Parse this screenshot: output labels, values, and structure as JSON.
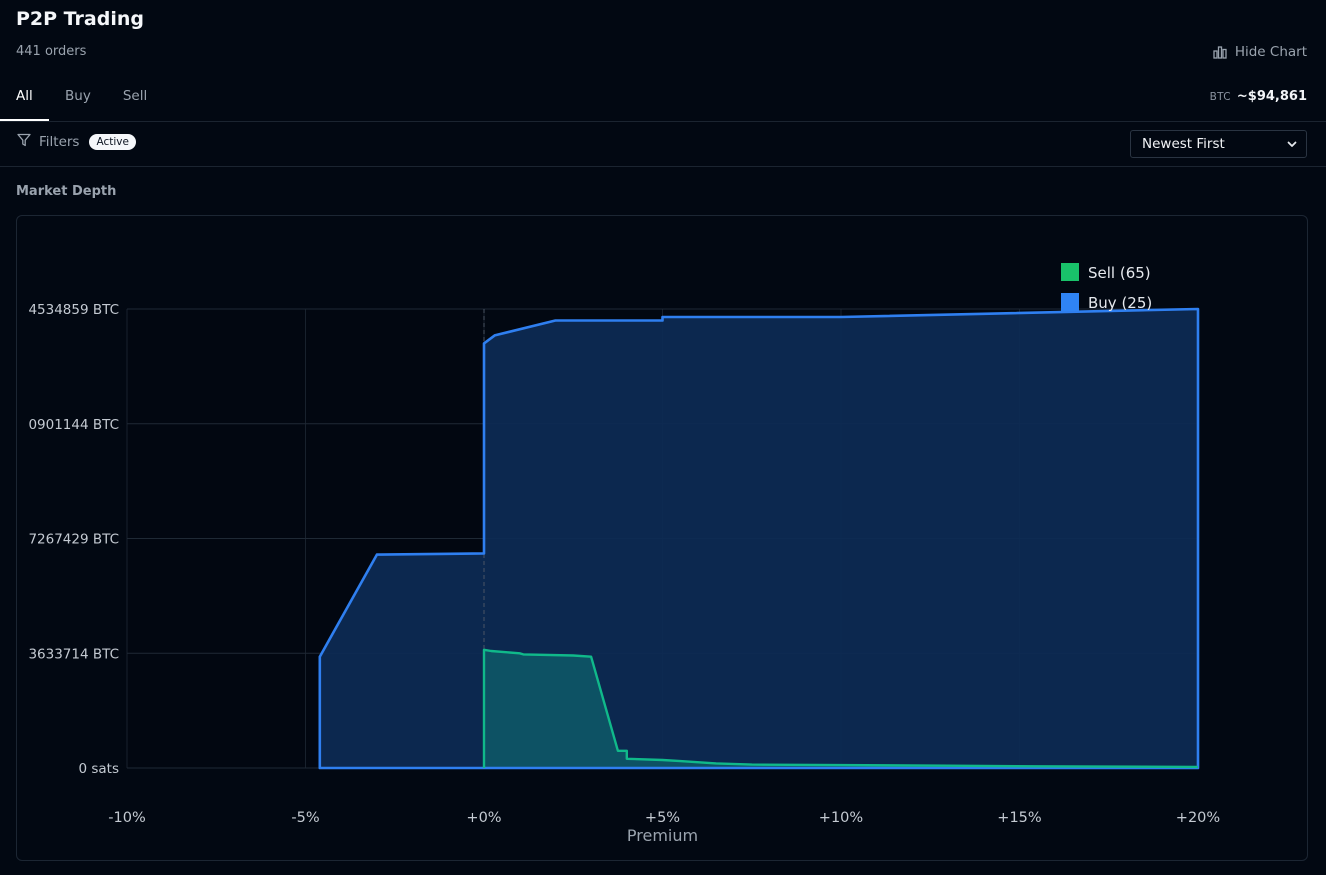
{
  "header": {
    "title": "P2P Trading",
    "orders_count": "441 orders",
    "hide_chart_label": "Hide Chart"
  },
  "tabs": [
    {
      "label": "All",
      "active": true
    },
    {
      "label": "Buy",
      "active": false
    },
    {
      "label": "Sell",
      "active": false
    }
  ],
  "price": {
    "symbol": "BTC",
    "value": "~$94,861"
  },
  "filters": {
    "label": "Filters",
    "badge": "Active"
  },
  "sort": {
    "selected": "Newest First"
  },
  "section": {
    "title": "Market Depth"
  },
  "colors": {
    "background": "#020812",
    "buy_line": "#2f7ff0",
    "buy_fill": "#0d2b55",
    "sell_line": "#10b98a",
    "sell_fill": "#0e5465",
    "sell_legend": "#19c26a",
    "buy_legend": "#2f84f5"
  },
  "icons": {
    "hide_chart": "bar-chart-icon",
    "filters": "funnel-icon",
    "sort": "chevron-down-icon"
  },
  "chart_data": {
    "type": "area",
    "title": "",
    "xlabel": "Premium",
    "ylabel": "",
    "x_tick_labels": [
      "-10%",
      "-5%",
      "+0%",
      "+5%",
      "+10%",
      "+15%",
      "+20%"
    ],
    "x_ticks": [
      -10,
      -5,
      0,
      5,
      10,
      15,
      20
    ],
    "y_tick_labels": [
      "0 sats",
      "3633714 BTC",
      "7267429 BTC",
      "0901144 BTC",
      "4534859 BTC"
    ],
    "y_ticks": [
      0,
      1,
      2,
      3,
      4
    ],
    "xlim": [
      -10,
      20
    ],
    "ylim": [
      0,
      4
    ],
    "y_unit_note": "y values in units of the tick step (tick labels are truncated on the left in the original)",
    "grid": true,
    "legend_position": "top-right",
    "series": [
      {
        "name": "Sell (65)",
        "points": [
          [
            0,
            0
          ],
          [
            0,
            1.03
          ],
          [
            0.2,
            1.02
          ],
          [
            1.0,
            1.0
          ],
          [
            1.1,
            0.99
          ],
          [
            2.5,
            0.98
          ],
          [
            3.0,
            0.97
          ],
          [
            3.75,
            0.15
          ],
          [
            4.0,
            0.15
          ],
          [
            4.0,
            0.08
          ],
          [
            5.0,
            0.07
          ],
          [
            5.5,
            0.06
          ],
          [
            6.5,
            0.04
          ],
          [
            7.5,
            0.03
          ],
          [
            10,
            0.025
          ],
          [
            13,
            0.02
          ],
          [
            15.5,
            0.015
          ],
          [
            20,
            0.01
          ],
          [
            20,
            0
          ]
        ]
      },
      {
        "name": "Buy (25)",
        "points": [
          [
            -4.6,
            0
          ],
          [
            -4.6,
            0.97
          ],
          [
            -3.0,
            1.86
          ],
          [
            0,
            1.87
          ],
          [
            0,
            3.7
          ],
          [
            0.3,
            3.77
          ],
          [
            2.0,
            3.9
          ],
          [
            5.0,
            3.9
          ],
          [
            5.0,
            3.93
          ],
          [
            10,
            3.93
          ],
          [
            20,
            4.0
          ],
          [
            20,
            0
          ]
        ]
      }
    ]
  }
}
